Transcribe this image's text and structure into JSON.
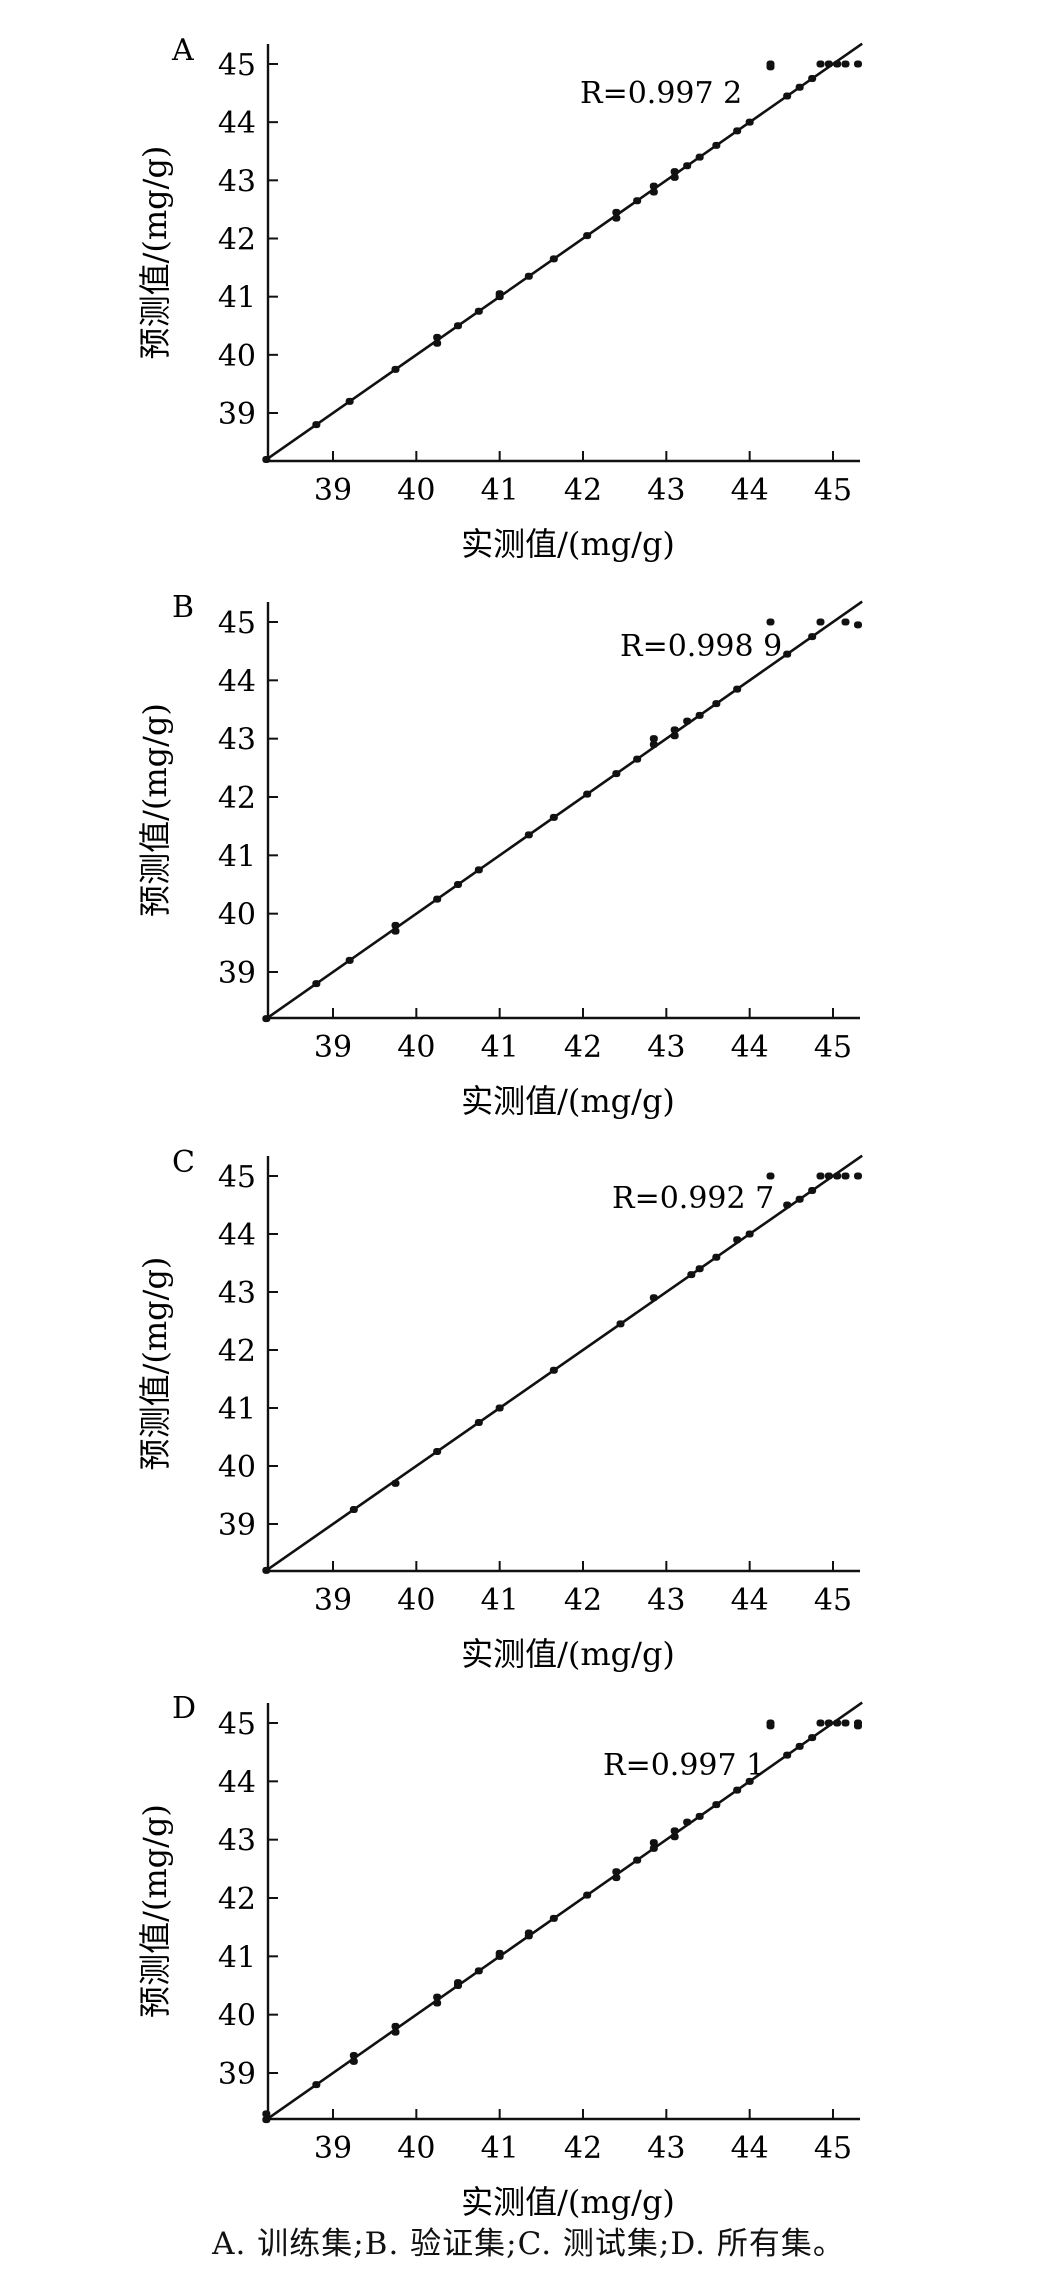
{
  "caption": "A. 训练集;B. 验证集;C. 测试集;D. 所有集。",
  "chart_data": [
    {
      "type": "scatter",
      "panel": "A",
      "r_label": "R=0.997 2",
      "xlabel": "实测值/(mg/g)",
      "ylabel": "预测值/(mg/g)",
      "x_ticks": [
        "39",
        "40",
        "41",
        "42",
        "43",
        "44",
        "45"
      ],
      "y_ticks": [
        "39",
        "40",
        "41",
        "42",
        "43",
        "44",
        "45"
      ],
      "xlim": [
        38.2,
        45.35
      ],
      "ylim": [
        38.2,
        45.3
      ],
      "fit_line": [
        [
          38.2,
          38.2
        ],
        [
          45.35,
          45.35
        ]
      ],
      "points": [
        [
          38.2,
          38.2
        ],
        [
          38.8,
          38.8
        ],
        [
          39.2,
          39.2
        ],
        [
          39.75,
          39.75
        ],
        [
          40.25,
          40.2
        ],
        [
          40.25,
          40.3
        ],
        [
          40.5,
          40.5
        ],
        [
          40.75,
          40.75
        ],
        [
          41.0,
          41.0
        ],
        [
          41.0,
          41.05
        ],
        [
          41.35,
          41.35
        ],
        [
          41.65,
          41.65
        ],
        [
          42.05,
          42.05
        ],
        [
          42.4,
          42.35
        ],
        [
          42.4,
          42.45
        ],
        [
          42.65,
          42.65
        ],
        [
          42.85,
          42.8
        ],
        [
          42.85,
          42.9
        ],
        [
          43.1,
          43.05
        ],
        [
          43.1,
          43.15
        ],
        [
          43.25,
          43.25
        ],
        [
          43.4,
          43.4
        ],
        [
          43.6,
          43.6
        ],
        [
          43.85,
          43.85
        ],
        [
          44.0,
          44.0
        ],
        [
          44.25,
          44.95
        ],
        [
          44.25,
          45.0
        ],
        [
          44.45,
          44.45
        ],
        [
          44.6,
          44.6
        ],
        [
          44.75,
          44.75
        ],
        [
          44.85,
          45.0
        ],
        [
          44.95,
          45.0
        ],
        [
          45.05,
          45.0
        ],
        [
          45.15,
          45.0
        ],
        [
          45.3,
          45.0
        ]
      ]
    },
    {
      "type": "scatter",
      "panel": "B",
      "r_label": "R=0.998 9",
      "xlabel": "实测值/(mg/g)",
      "ylabel": "预测值/(mg/g)",
      "x_ticks": [
        "39",
        "40",
        "41",
        "42",
        "43",
        "44",
        "45"
      ],
      "y_ticks": [
        "39",
        "40",
        "41",
        "42",
        "43",
        "44",
        "45"
      ],
      "xlim": [
        38.2,
        45.35
      ],
      "ylim": [
        38.2,
        45.35
      ],
      "fit_line": [
        [
          38.2,
          38.2
        ],
        [
          45.35,
          45.35
        ]
      ],
      "points": [
        [
          38.2,
          38.2
        ],
        [
          38.8,
          38.8
        ],
        [
          39.2,
          39.2
        ],
        [
          39.75,
          39.7
        ],
        [
          39.75,
          39.8
        ],
        [
          40.25,
          40.25
        ],
        [
          40.5,
          40.5
        ],
        [
          40.75,
          40.75
        ],
        [
          41.35,
          41.35
        ],
        [
          41.65,
          41.65
        ],
        [
          42.05,
          42.05
        ],
        [
          42.4,
          42.4
        ],
        [
          42.65,
          42.65
        ],
        [
          42.85,
          42.9
        ],
        [
          42.85,
          43.0
        ],
        [
          43.1,
          43.05
        ],
        [
          43.1,
          43.15
        ],
        [
          43.25,
          43.3
        ],
        [
          43.4,
          43.4
        ],
        [
          43.6,
          43.6
        ],
        [
          43.85,
          43.85
        ],
        [
          44.25,
          45.0
        ],
        [
          44.45,
          44.45
        ],
        [
          44.75,
          44.75
        ],
        [
          44.85,
          45.0
        ],
        [
          45.15,
          45.0
        ],
        [
          45.3,
          44.95
        ]
      ]
    },
    {
      "type": "scatter",
      "panel": "C",
      "r_label": "R=0.992 7",
      "xlabel": "实测值/(mg/g)",
      "ylabel": "预测值/(mg/g)",
      "x_ticks": [
        "39",
        "40",
        "41",
        "42",
        "43",
        "44",
        "45"
      ],
      "y_ticks": [
        "39",
        "40",
        "41",
        "42",
        "43",
        "44",
        "45"
      ],
      "xlim": [
        38.2,
        45.35
      ],
      "ylim": [
        38.2,
        45.35
      ],
      "fit_line": [
        [
          38.2,
          38.2
        ],
        [
          45.35,
          45.35
        ]
      ],
      "points": [
        [
          38.2,
          38.2
        ],
        [
          39.25,
          39.25
        ],
        [
          39.75,
          39.7
        ],
        [
          40.25,
          40.25
        ],
        [
          40.75,
          40.75
        ],
        [
          41.0,
          41.0
        ],
        [
          41.65,
          41.65
        ],
        [
          42.45,
          42.45
        ],
        [
          42.85,
          42.9
        ],
        [
          43.3,
          43.3
        ],
        [
          43.4,
          43.4
        ],
        [
          43.6,
          43.6
        ],
        [
          43.85,
          43.9
        ],
        [
          44.0,
          44.0
        ],
        [
          44.25,
          45.0
        ],
        [
          44.45,
          44.5
        ],
        [
          44.6,
          44.6
        ],
        [
          44.75,
          44.75
        ],
        [
          44.85,
          45.0
        ],
        [
          44.95,
          45.0
        ],
        [
          45.05,
          45.0
        ],
        [
          45.15,
          45.0
        ],
        [
          45.3,
          45.0
        ]
      ]
    },
    {
      "type": "scatter",
      "panel": "D",
      "r_label": "R=0.997 1",
      "xlabel": "实测值/(mg/g)",
      "ylabel": "预测值/(mg/g)",
      "x_ticks": [
        "39",
        "40",
        "41",
        "42",
        "43",
        "44",
        "45"
      ],
      "y_ticks": [
        "39",
        "40",
        "41",
        "42",
        "43",
        "44",
        "45"
      ],
      "xlim": [
        38.2,
        45.35
      ],
      "ylim": [
        38.2,
        45.3
      ],
      "fit_line": [
        [
          38.2,
          38.2
        ],
        [
          45.35,
          45.35
        ]
      ],
      "points": [
        [
          38.2,
          38.2
        ],
        [
          38.2,
          38.3
        ],
        [
          38.8,
          38.8
        ],
        [
          39.25,
          39.2
        ],
        [
          39.25,
          39.3
        ],
        [
          39.75,
          39.7
        ],
        [
          39.75,
          39.8
        ],
        [
          40.25,
          40.2
        ],
        [
          40.25,
          40.3
        ],
        [
          40.5,
          40.5
        ],
        [
          40.5,
          40.55
        ],
        [
          40.75,
          40.75
        ],
        [
          41.0,
          41.0
        ],
        [
          41.0,
          41.05
        ],
        [
          41.35,
          41.35
        ],
        [
          41.35,
          41.4
        ],
        [
          41.65,
          41.65
        ],
        [
          42.05,
          42.05
        ],
        [
          42.4,
          42.35
        ],
        [
          42.4,
          42.45
        ],
        [
          42.65,
          42.65
        ],
        [
          42.85,
          42.85
        ],
        [
          42.85,
          42.95
        ],
        [
          43.1,
          43.05
        ],
        [
          43.1,
          43.15
        ],
        [
          43.25,
          43.3
        ],
        [
          43.4,
          43.4
        ],
        [
          43.6,
          43.6
        ],
        [
          43.85,
          43.85
        ],
        [
          44.0,
          44.0
        ],
        [
          44.25,
          44.95
        ],
        [
          44.25,
          45.0
        ],
        [
          44.45,
          44.45
        ],
        [
          44.6,
          44.6
        ],
        [
          44.75,
          44.75
        ],
        [
          44.85,
          45.0
        ],
        [
          44.95,
          45.0
        ],
        [
          45.05,
          45.0
        ],
        [
          45.15,
          45.0
        ],
        [
          45.3,
          44.95
        ],
        [
          45.3,
          45.0
        ]
      ]
    }
  ]
}
